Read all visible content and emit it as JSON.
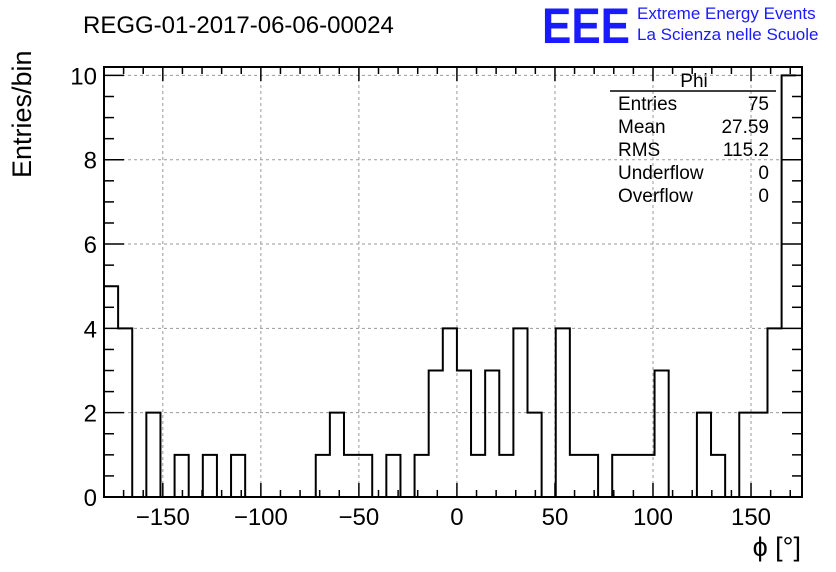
{
  "chart_data": {
    "type": "histogram",
    "title": "REGG-01-2017-06-06-00024",
    "xlabel": "ϕ [°]",
    "ylabel": "Entries/bin",
    "xlim": [
      -180,
      176
    ],
    "ylim": [
      0,
      10.2
    ],
    "grid": true,
    "bin_width": 7.2,
    "bin_start": -180,
    "x_ticks": [
      -150,
      -100,
      -50,
      0,
      50,
      100,
      150
    ],
    "x_tick_labels": [
      "−150",
      "−100",
      "−50",
      "0",
      "50",
      "100",
      "150"
    ],
    "y_ticks": [
      0,
      2,
      4,
      6,
      8,
      10
    ],
    "y_tick_labels": [
      "0",
      "2",
      "4",
      "6",
      "8",
      "10"
    ],
    "values": [
      5,
      4,
      0,
      2,
      0,
      1,
      0,
      1,
      0,
      1,
      0,
      0,
      0,
      0,
      0,
      1,
      2,
      1,
      1,
      0,
      1,
      0,
      1,
      3,
      4,
      3,
      1,
      3,
      1,
      4,
      2,
      0,
      4,
      1,
      1,
      0,
      1,
      1,
      1,
      3,
      0,
      0,
      2,
      1,
      0,
      2,
      2,
      4,
      10
    ],
    "stats": {
      "header": "Phi",
      "rows": [
        {
          "label": "Entries",
          "value": "75"
        },
        {
          "label": "Mean",
          "value": "27.59"
        },
        {
          "label": "RMS",
          "value": "115.2"
        },
        {
          "label": "Underflow",
          "value": "0"
        },
        {
          "label": "Overflow",
          "value": "0"
        }
      ]
    }
  },
  "logo": {
    "mark": "EEE",
    "line1": "Extreme Energy Events",
    "line2": "La Scienza nelle Scuole"
  },
  "colors": {
    "logo": "#1a1aff",
    "histogram": "#000000",
    "grid": "#9a9a9a"
  }
}
